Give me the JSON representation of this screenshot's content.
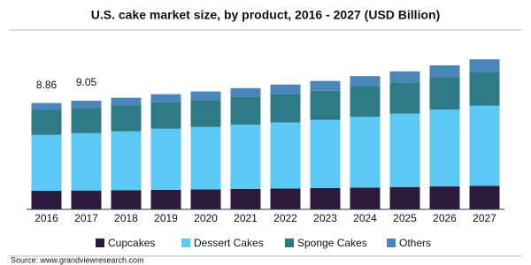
{
  "chart_data": {
    "type": "stacked_bar",
    "title": "U.S. cake market size, by product, 2016 - 2027 (USD Billion)",
    "categories": [
      "2016",
      "2017",
      "2018",
      "2019",
      "2020",
      "2021",
      "2022",
      "2023",
      "2024",
      "2025",
      "2026",
      "2027"
    ],
    "series": [
      {
        "name": "Cupcakes",
        "color": "#2d1b3d",
        "values": [
          1.55,
          1.57,
          1.6,
          1.63,
          1.66,
          1.7,
          1.73,
          1.77,
          1.81,
          1.86,
          1.91,
          1.96
        ]
      },
      {
        "name": "Dessert Cakes",
        "color": "#5cc8f5",
        "values": [
          4.66,
          4.78,
          4.9,
          5.08,
          5.2,
          5.35,
          5.52,
          5.68,
          5.9,
          6.12,
          6.4,
          6.68
        ]
      },
      {
        "name": "Sponge Cakes",
        "color": "#2e7a86",
        "values": [
          2.07,
          2.08,
          2.15,
          2.2,
          2.25,
          2.3,
          2.37,
          2.43,
          2.52,
          2.6,
          2.72,
          2.82
        ]
      },
      {
        "name": "Others",
        "color": "#4a86b9",
        "values": [
          0.58,
          0.62,
          0.65,
          0.69,
          0.71,
          0.75,
          0.78,
          0.82,
          0.87,
          0.92,
          0.97,
          1.04
        ]
      }
    ],
    "totals": [
      8.86,
      9.05,
      null,
      null,
      null,
      null,
      null,
      null,
      null,
      null,
      null,
      null
    ],
    "ylim": [
      0,
      14.5
    ],
    "source": "Source: www.grandviewresearch.com"
  }
}
